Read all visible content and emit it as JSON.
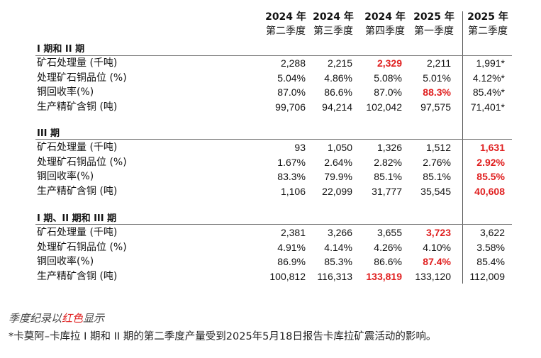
{
  "headers": [
    {
      "year": "2024 年",
      "quarter": "第二季度"
    },
    {
      "year": "2024 年",
      "quarter": "第三季度"
    },
    {
      "year": "2024 年",
      "quarter": "第四季度"
    },
    {
      "year": "2025 年",
      "quarter": "第一季度"
    },
    {
      "year": "2025 年",
      "quarter": "第二季度"
    }
  ],
  "sections": [
    {
      "title": "I 期和 II 期",
      "rows": [
        {
          "label": "矿石处理量 (千吨)",
          "values": [
            "2,288",
            "2,215",
            "2,329",
            "2,211",
            "1,991*"
          ],
          "highlight": [
            2
          ]
        },
        {
          "label": "处理矿石铜品位 (%)",
          "values": [
            "5.04%",
            "4.86%",
            "5.08%",
            "5.01%",
            "4.12%*"
          ],
          "highlight": []
        },
        {
          "label": "铜回收率(%)",
          "values": [
            "87.0%",
            "86.6%",
            "87.0%",
            "88.3%",
            "85.4%*"
          ],
          "highlight": [
            3
          ]
        },
        {
          "label": "生产精矿含铜 (吨)",
          "values": [
            "99,706",
            "94,214",
            "102,042",
            "97,575",
            "71,401*"
          ],
          "highlight": []
        }
      ]
    },
    {
      "title": "III 期",
      "rows": [
        {
          "label": "矿石处理量 (千吨)",
          "values": [
            "93",
            "1,050",
            "1,326",
            "1,512",
            "1,631"
          ],
          "highlight": [
            4
          ]
        },
        {
          "label": "处理矿石铜品位 (%)",
          "values": [
            "1.67%",
            "2.64%",
            "2.82%",
            "2.76%",
            "2.92%"
          ],
          "highlight": [
            4
          ]
        },
        {
          "label": "铜回收率(%)",
          "values": [
            "83.3%",
            "79.9%",
            "85.1%",
            "85.1%",
            "85.5%"
          ],
          "highlight": [
            4
          ]
        },
        {
          "label": "生产精矿含铜 (吨)",
          "values": [
            "1,106",
            "22,099",
            "31,777",
            "35,545",
            "40,608"
          ],
          "highlight": [
            4
          ]
        }
      ]
    },
    {
      "title": "I 期、II 期和 III 期",
      "rows": [
        {
          "label": "矿石处理量 (千吨)",
          "values": [
            "2,381",
            "3,266",
            "3,655",
            "3,723",
            "3,622"
          ],
          "highlight": [
            3
          ]
        },
        {
          "label": "处理矿石铜品位 (%)",
          "values": [
            "4.91%",
            "4.14%",
            "4.26%",
            "4.10%",
            "3.58%"
          ],
          "highlight": []
        },
        {
          "label": "铜回收率(%)",
          "values": [
            "86.9%",
            "85.3%",
            "86.6%",
            "87.4%",
            "85.4%"
          ],
          "highlight": [
            3
          ]
        },
        {
          "label": "生产精矿含铜 (吨)",
          "values": [
            "100,812",
            "116,313",
            "133,819",
            "133,120",
            "112,009"
          ],
          "highlight": [
            2
          ]
        }
      ]
    }
  ],
  "notes": {
    "record_prefix": "季度纪录以",
    "record_red": "红色",
    "record_suffix": "显示",
    "footnote": "*卡莫阿–卡库拉 I 期和 II 期的第二季度产量受到2025年5月18日报告卡库拉矿震活动的影响。"
  },
  "colors": {
    "highlight": "#e01f1f"
  }
}
